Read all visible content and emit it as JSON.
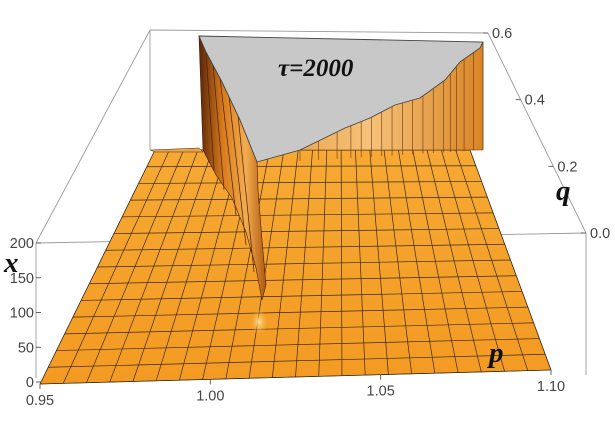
{
  "chart_data": {
    "type": "surface-3d",
    "annotation": "τ=2000",
    "axes": {
      "p": {
        "label": "p",
        "range": [
          0.95,
          1.1
        ],
        "ticks": [
          0.95,
          1.0,
          1.05,
          1.1
        ],
        "tick_labels": [
          "0.95",
          "1.00",
          "1.05",
          "1.10"
        ]
      },
      "q": {
        "label": "q",
        "range": [
          0.0,
          0.6
        ],
        "ticks": [
          0.0,
          0.2,
          0.4,
          0.6
        ],
        "tick_labels": [
          "0.0",
          "0.2",
          "0.4",
          "0.6"
        ]
      },
      "x": {
        "label": "x",
        "range": [
          0,
          200
        ],
        "ticks": [
          0,
          50,
          100,
          150,
          200
        ],
        "tick_labels": [
          "0",
          "50",
          "100",
          "150",
          "200"
        ]
      }
    },
    "surface": {
      "floor_value": 0,
      "plateau_value": 200,
      "plateau_region": "p > 0.985 and q > 0.45 + 0.1*(p - 1.10)/0.1 approximately",
      "ridge": {
        "p": 1.002,
        "x": 30
      }
    },
    "colors": {
      "surface": "#f4a32e",
      "surface_dark": "#9a4a0c",
      "plateau_top": "#c8c8c8",
      "grid": "#3a2a1a",
      "box": "#9a9a9a"
    }
  }
}
